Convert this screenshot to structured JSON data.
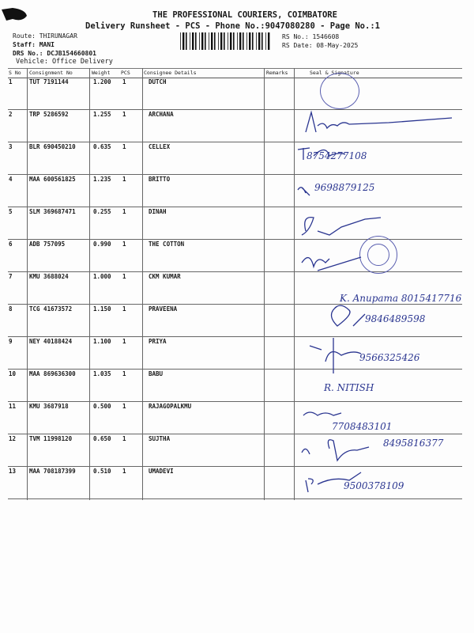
{
  "header": {
    "title": "THE PROFESSIONAL COURIERS, COIMBATORE",
    "subtitle": "Delivery Runsheet - PCS - Phone No.:9047080280 - Page No.:1",
    "route": "Route: THIRUNAGAR",
    "staff": "Staff: MANI",
    "drs_no": "DRS No.: DCJB154660801",
    "vehicle": "Vehicle: Office Delivery",
    "rs_no": "RS No.: 1546608",
    "rs_date": "RS Date: 08-May-2025"
  },
  "table": {
    "columns": [
      "S No",
      "Consignment No",
      "Weight",
      "PCS",
      "Consignee Details",
      "Remarks",
      "Seal & Signature"
    ],
    "rows": [
      {
        "sno": "1",
        "consignment": "TUT 7191144",
        "weight": "1.200",
        "pcs": "1",
        "consignee": "DUTCH",
        "handwritten": ""
      },
      {
        "sno": "2",
        "consignment": "TRP 5286592",
        "weight": "1.255",
        "pcs": "1",
        "consignee": "ARCHANA",
        "handwritten": ""
      },
      {
        "sno": "3",
        "consignment": "BLR 690450210",
        "weight": "0.635",
        "pcs": "1",
        "consignee": "CELLEX",
        "handwritten": "8754277108"
      },
      {
        "sno": "4",
        "consignment": "MAA 600561825",
        "weight": "1.235",
        "pcs": "1",
        "consignee": "BRITTO",
        "handwritten": "9698879125"
      },
      {
        "sno": "5",
        "consignment": "SLM 369687471",
        "weight": "0.255",
        "pcs": "1",
        "consignee": "DINAH",
        "handwritten": ""
      },
      {
        "sno": "6",
        "consignment": "ADB 757095",
        "weight": "0.990",
        "pcs": "1",
        "consignee": "THE COTTON",
        "handwritten": ""
      },
      {
        "sno": "7",
        "consignment": "KMU 3688024",
        "weight": "1.000",
        "pcs": "1",
        "consignee": "CKM KUMAR",
        "handwritten": "K. Anupama 8015417716"
      },
      {
        "sno": "8",
        "consignment": "TCG 41673572",
        "weight": "1.150",
        "pcs": "1",
        "consignee": "PRAVEENA",
        "handwritten": "9846489598"
      },
      {
        "sno": "9",
        "consignment": "NEY 40188424",
        "weight": "1.100",
        "pcs": "1",
        "consignee": "PRIYA",
        "handwritten": "9566325426"
      },
      {
        "sno": "10",
        "consignment": "MAA 869636300",
        "weight": "1.035",
        "pcs": "1",
        "consignee": "BABU",
        "handwritten": "R. NITISH"
      },
      {
        "sno": "11",
        "consignment": "KMU 3687918",
        "weight": "0.500",
        "pcs": "1",
        "consignee": "RAJAGOPALKMU",
        "handwritten": "7708483101"
      },
      {
        "sno": "12",
        "consignment": "TVM 11998120",
        "weight": "0.650",
        "pcs": "1",
        "consignee": "SUJTHA",
        "handwritten": "8495816377"
      },
      {
        "sno": "13",
        "consignment": "MAA 708187399",
        "weight": "0.510",
        "pcs": "1",
        "consignee": "UMADEVI",
        "handwritten": "9500378109"
      }
    ]
  },
  "colors": {
    "ink": "#1a1a1a",
    "pen": "#2a3590",
    "stamp": "#5a5fb0"
  }
}
